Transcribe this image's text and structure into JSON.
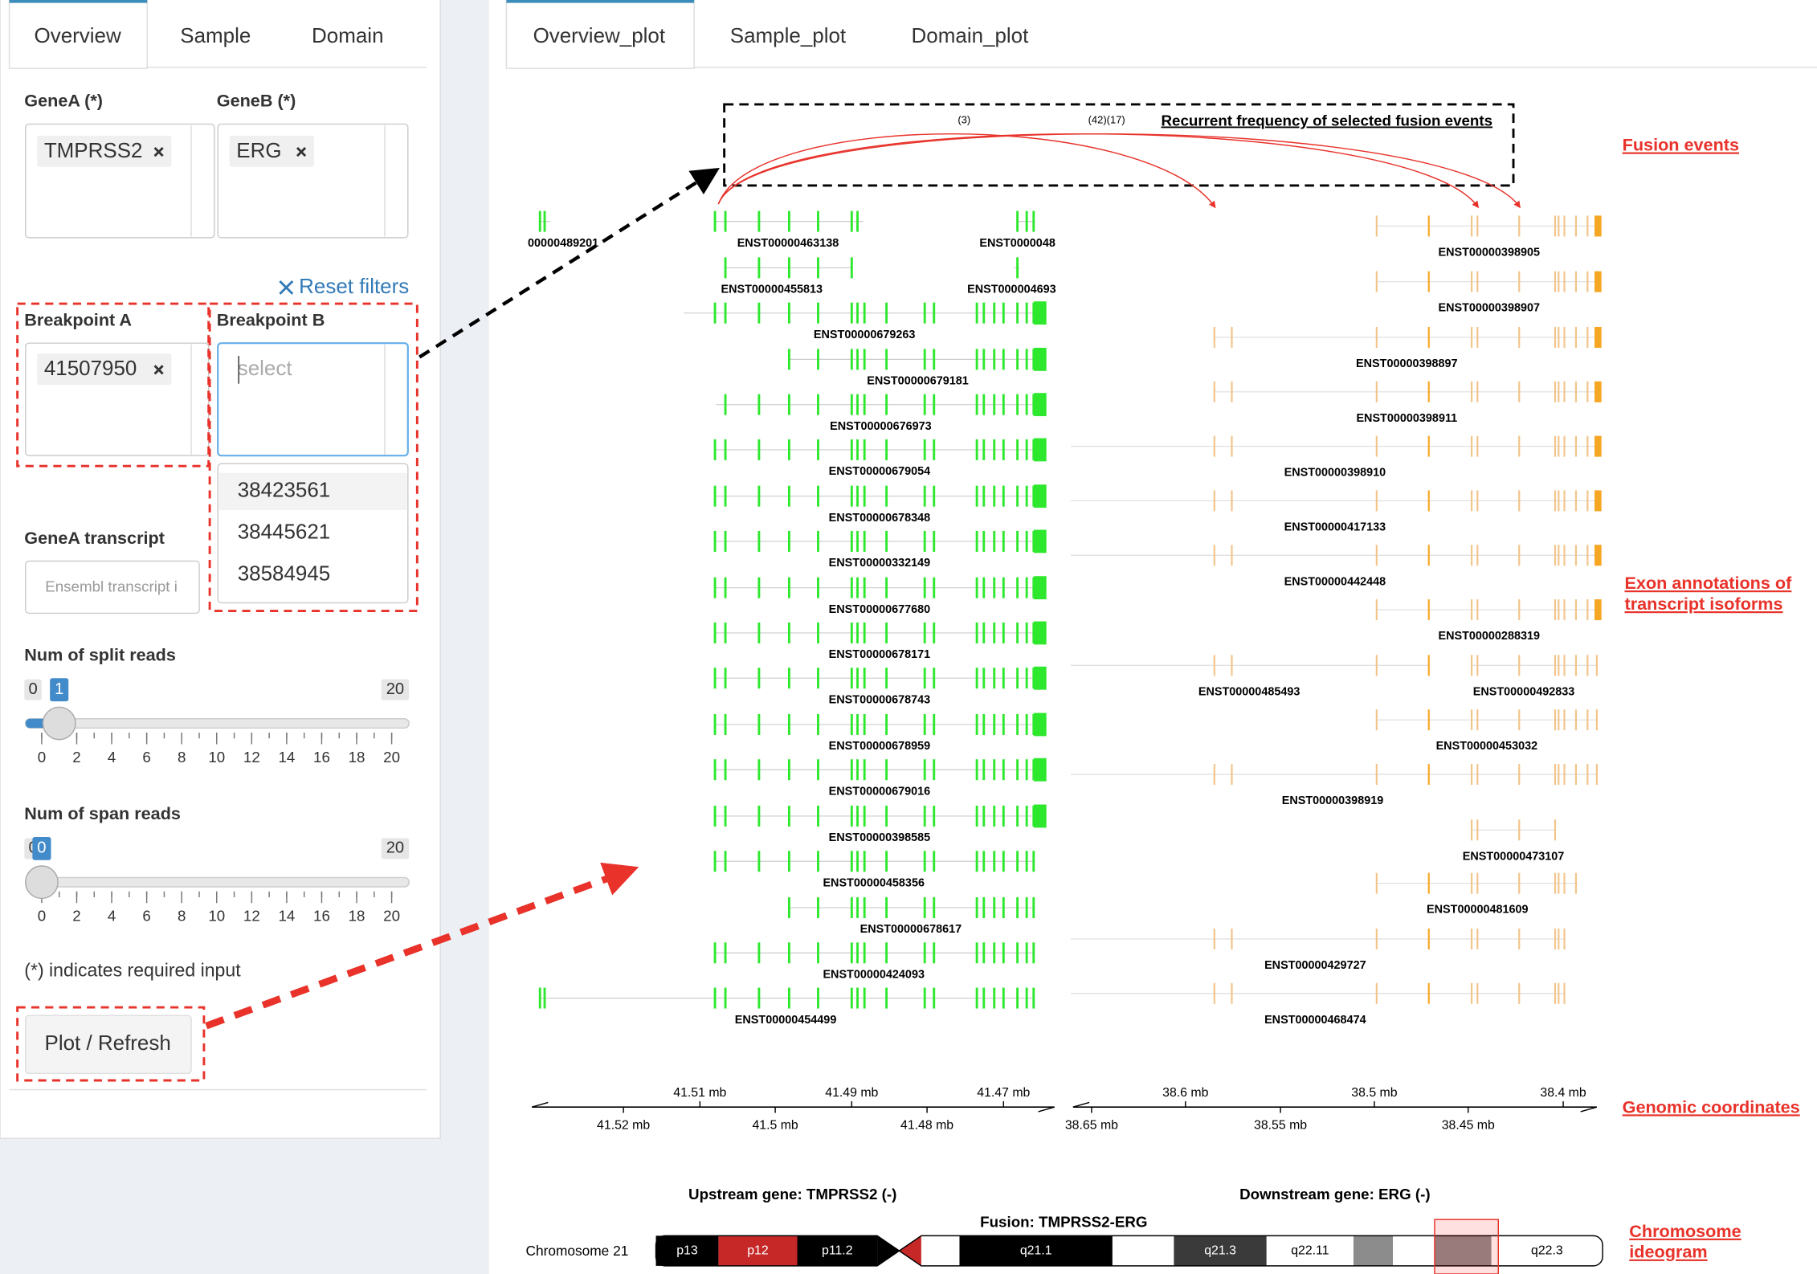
{
  "sidebar": {
    "tabs": [
      "Overview",
      "Sample",
      "Domain"
    ],
    "gene_a": {
      "label": "GeneA (*)",
      "value": "TMPRSS2"
    },
    "gene_b": {
      "label": "GeneB (*)",
      "value": "ERG"
    },
    "reset_filters": "Reset filters",
    "breakpoint_a": {
      "label": "Breakpoint A",
      "value": "41507950"
    },
    "breakpoint_b": {
      "label": "Breakpoint B",
      "placeholder": "select",
      "options": [
        "38423561",
        "38445621",
        "38584945"
      ]
    },
    "gene_a_transcript": {
      "label": "GeneA transcript",
      "placeholder": "Ensembl transcript i"
    },
    "split_reads": {
      "label": "Num of split reads",
      "min": 0,
      "max": 20,
      "value": 1,
      "ticks": [
        0,
        2,
        4,
        6,
        8,
        10,
        12,
        14,
        16,
        18,
        20
      ]
    },
    "span_reads": {
      "label": "Num of span reads",
      "min": 0,
      "max": 20,
      "value": 0,
      "ticks": [
        0,
        2,
        4,
        6,
        8,
        10,
        12,
        14,
        16,
        18,
        20
      ]
    },
    "note": "(*) indicates required input",
    "button": "Plot / Refresh"
  },
  "main": {
    "tabs": [
      "Overview_plot",
      "Sample_plot",
      "Domain_plot"
    ],
    "plot": {
      "title": "Recurrent frequency of selected fusion events",
      "counts": [
        "(3)",
        "(42)(17)"
      ],
      "left_transcripts": [
        "00000489201",
        "ENST00000463138",
        "ENST0000048",
        "ENST00000455813",
        "ENST000004693",
        "ENST00000679263",
        "ENST00000679181",
        "ENST00000676973",
        "ENST00000679054",
        "ENST00000678348",
        "ENST00000332149",
        "ENST00000677680",
        "ENST00000678171",
        "ENST00000678743",
        "ENST00000678959",
        "ENST00000679016",
        "ENST00000398585",
        "ENST00000458356",
        "ENST00000678617",
        "ENST00000424093",
        "ENST00000454499"
      ],
      "right_transcripts": [
        "ENST00000398905",
        "ENST00000398907",
        "ENST00000398897",
        "ENST00000398911",
        "ENST00000398910",
        "ENST00000417133",
        "ENST00000442448",
        "ENST00000288319",
        "ENST00000485493",
        "ENST00000492833",
        "ENST00000453032",
        "ENST00000398919",
        "ENST00000473107",
        "ENST00000481609",
        "ENST00000429727",
        "ENST00000468474"
      ],
      "axis_left_top": [
        "41.51 mb",
        "41.49 mb",
        "41.47 mb"
      ],
      "axis_left_bottom": [
        "41.52 mb",
        "41.5 mb",
        "41.48 mb"
      ],
      "axis_right_top": [
        "38.6 mb",
        "38.5 mb",
        "38.4 mb"
      ],
      "axis_right_bottom": [
        "38.65 mb",
        "38.55 mb",
        "38.45 mb"
      ],
      "upstream": "Upstream gene: TMPRSS2 (-)",
      "downstream": "Downstream gene: ERG (-)",
      "fusion": "Fusion: TMPRSS2-ERG",
      "chromosome": "Chromosome 21",
      "bands": [
        "p13",
        "p12",
        "p11.2",
        "q21.1",
        "q21.3",
        "q22.11",
        "q22.3"
      ]
    },
    "annotations": {
      "fusion_events": "Fusion events",
      "exon_annotations": [
        "Exon annotations of",
        "transcript isoforms"
      ],
      "genomic_coordinates": "Genomic coordinates",
      "chromosome_ideogram": [
        "Chromosome",
        "ideogram"
      ]
    }
  }
}
